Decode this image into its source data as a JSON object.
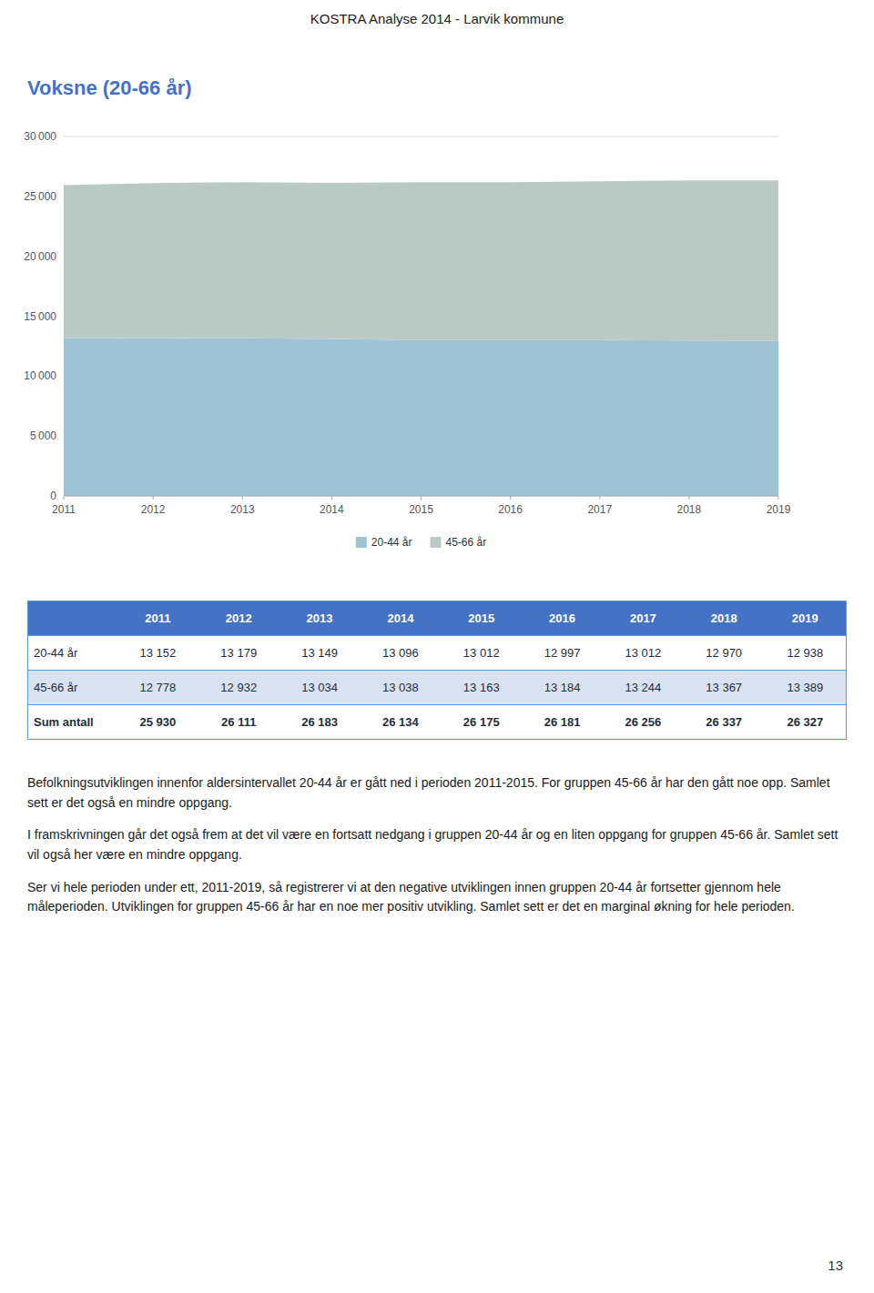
{
  "page_title": "KOSTRA Analyse 2014 - Larvik kommune",
  "chart_data": {
    "type": "area",
    "title": "Voksne (20-66 år)",
    "stacked": true,
    "x": [
      2011,
      2012,
      2013,
      2014,
      2015,
      2016,
      2017,
      2018,
      2019
    ],
    "xlim": [
      2011,
      2019
    ],
    "xticks": [
      2011,
      2012,
      2013,
      2014,
      2015,
      2016,
      2017,
      2018,
      2019
    ],
    "ylim": [
      0,
      30000
    ],
    "yticks": [
      0,
      {
        "value": 5000,
        "label": "5 000"
      },
      {
        "value": 10000,
        "label": "10 000"
      },
      {
        "value": 15000,
        "label": "15 000"
      },
      {
        "value": 20000,
        "label": "20 000"
      },
      {
        "value": 25000,
        "label": "25 000"
      },
      {
        "value": 30000,
        "label": "30 000"
      }
    ],
    "grid": true,
    "legend": "bottom",
    "series": [
      {
        "name": "20-44 år",
        "color": "#9DC3D4",
        "values": [
          13152,
          13179,
          13149,
          13096,
          13012,
          12997,
          13012,
          12970,
          12938
        ]
      },
      {
        "name": "45-66 år",
        "color": "#BBC9C5",
        "values": [
          12778,
          12932,
          13034,
          13038,
          13163,
          13184,
          13244,
          13367,
          13389
        ]
      }
    ]
  },
  "table": {
    "columns": [
      "2011",
      "2012",
      "2013",
      "2014",
      "2015",
      "2016",
      "2017",
      "2018",
      "2019"
    ],
    "rows": [
      {
        "label": "20-44 år",
        "values": [
          13152,
          13179,
          13149,
          13096,
          13012,
          12997,
          13012,
          12970,
          12938
        ],
        "value_labels": [
          "13 152",
          "13 179",
          "13 149",
          "13 096",
          "13 012",
          "12 997",
          "13 012",
          "12 970",
          "12 938"
        ]
      },
      {
        "label": "45-66 år",
        "values": [
          12778,
          12932,
          13034,
          13038,
          13163,
          13184,
          13244,
          13367,
          13389
        ],
        "value_labels": [
          "12 778",
          "12 932",
          "13 034",
          "13 038",
          "13 163",
          "13 184",
          "13 244",
          "13 367",
          "13 389"
        ]
      },
      {
        "label": "Sum antall",
        "values": [
          25930,
          26111,
          26183,
          26134,
          26175,
          26181,
          26256,
          26337,
          26327
        ],
        "value_labels": [
          "25 930",
          "26 111",
          "26 183",
          "26 134",
          "26 175",
          "26 181",
          "26 256",
          "26 337",
          "26 327"
        ]
      }
    ]
  },
  "paragraphs": [
    "Befolkningsutviklingen innenfor aldersintervallet 20-44 år er gått ned i perioden 2011-2015. For gruppen 45-66 år har den gått noe opp. Samlet sett er det også en mindre oppgang.",
    "I framskrivningen går det også frem at det vil være en fortsatt nedgang i gruppen 20-44 år og en liten oppgang for gruppen 45-66 år. Samlet sett vil også her være en mindre oppgang.",
    "Ser vi hele perioden under ett, 2011-2019, så registrerer vi at den negative utviklingen innen gruppen 20-44 år fortsetter gjennom hele måleperioden. Utviklingen for gruppen 45-66 år har en noe mer positiv utvikling. Samlet sett er det en marginal økning for hele perioden."
  ],
  "page_number": "13"
}
